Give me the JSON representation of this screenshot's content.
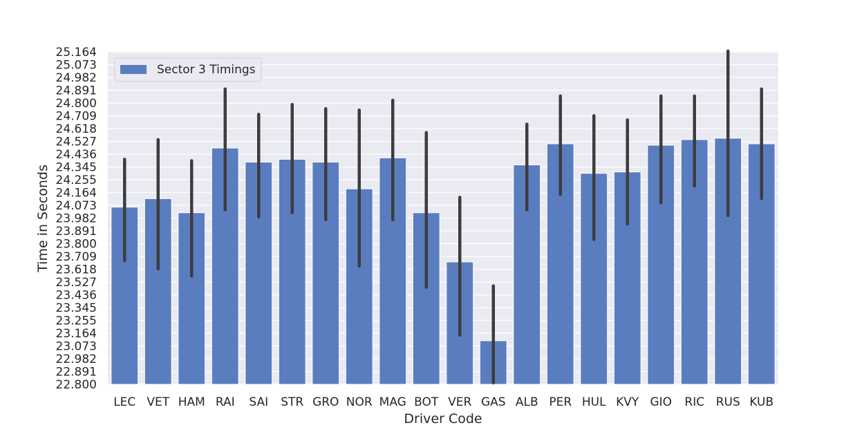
{
  "chart_data": {
    "type": "bar",
    "categories": [
      "LEC",
      "VET",
      "HAM",
      "RAI",
      "SAI",
      "STR",
      "GRO",
      "NOR",
      "MAG",
      "BOT",
      "VER",
      "GAS",
      "ALB",
      "PER",
      "HUL",
      "KVY",
      "GIO",
      "RIC",
      "RUS",
      "KUB"
    ],
    "series": [
      {
        "name": "Sector 3 Timings",
        "values": [
          24.06,
          24.12,
          24.02,
          24.48,
          24.38,
          24.4,
          24.38,
          24.19,
          24.41,
          24.02,
          23.67,
          23.11,
          24.36,
          24.51,
          24.3,
          24.31,
          24.5,
          24.54,
          24.55,
          24.51
        ],
        "error_low": [
          23.68,
          23.62,
          23.57,
          24.04,
          23.99,
          24.02,
          23.97,
          23.64,
          23.97,
          23.49,
          23.15,
          22.81,
          24.04,
          24.15,
          23.83,
          23.94,
          24.09,
          24.21,
          24.0,
          24.12
        ],
        "error_high": [
          24.4,
          24.54,
          24.39,
          24.9,
          24.72,
          24.79,
          24.76,
          24.75,
          24.82,
          24.59,
          24.13,
          23.5,
          24.65,
          24.85,
          24.71,
          24.68,
          24.85,
          24.85,
          25.17,
          24.9
        ]
      }
    ],
    "title": "",
    "xlabel": "Driver Code",
    "ylabel": "Time in Seconds",
    "yticks": [
      "22.800",
      "22.891",
      "22.982",
      "23.073",
      "23.164",
      "23.255",
      "23.345",
      "23.436",
      "23.527",
      "23.618",
      "23.709",
      "23.800",
      "23.891",
      "23.982",
      "24.073",
      "24.164",
      "24.255",
      "24.345",
      "24.436",
      "24.527",
      "24.618",
      "24.709",
      "24.800",
      "24.891",
      "24.982",
      "25.073",
      "25.164"
    ],
    "ylim": [
      22.8,
      25.164
    ],
    "grid": true,
    "legend_position": "top-left",
    "colors": {
      "bar": "#5a7dc0",
      "error": "#3d3d3d",
      "background": "#eaeaf2",
      "grid": "#ffffff"
    }
  }
}
